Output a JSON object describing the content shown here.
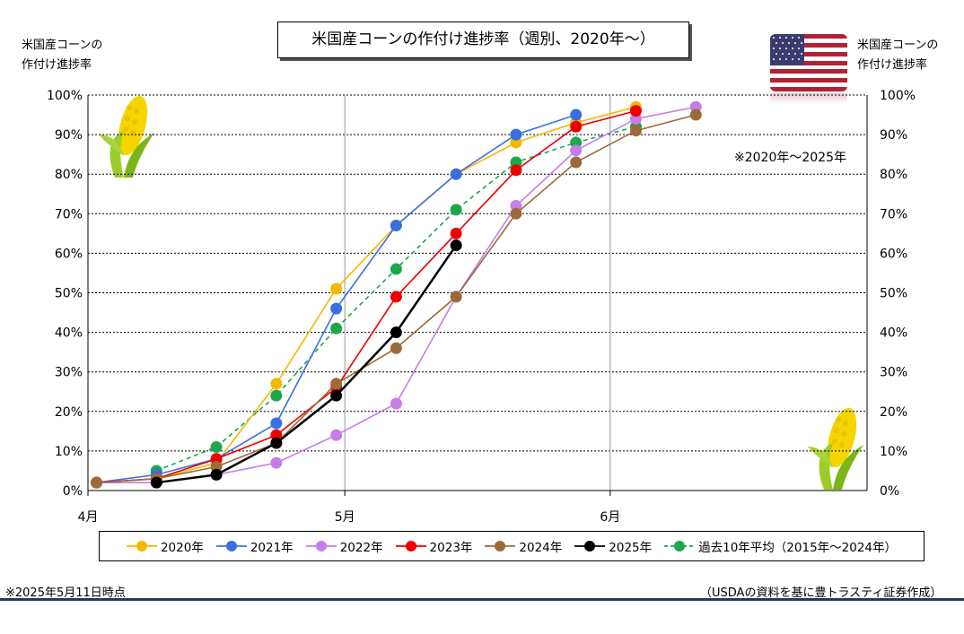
{
  "title": "米国産コーンの作付け進捗率（週別、2020年～）",
  "left_axis_title": [
    "米国産コーンの",
    "作付け進捗率"
  ],
  "right_axis_title": [
    "米国産コーンの",
    "作付け進捗率"
  ],
  "note_range": "※2020年～2025年",
  "footer_left": "※2025年5月11日時点",
  "footer_right": "（USDAの資料を基に豊トラスティ証券作成）",
  "colors": {
    "2020": "#f5b800",
    "2021": "#3a6fe0",
    "2022": "#c77de8",
    "2023": "#ee0000",
    "2024": "#9c6a3a",
    "2025": "#000000",
    "avg": "#1aa84a"
  },
  "icons": [
    "corn-icon",
    "us-flag-icon"
  ],
  "chart_data": {
    "type": "line",
    "xlabel": "",
    "ylabel": "米国産コーンの作付け進捗率",
    "x_unit": "day-of-season (Apr 1 = 0)",
    "xlim": [
      "4月1日",
      "7月1日"
    ],
    "x_ticks": [
      {
        "label": "4月",
        "day": 0
      },
      {
        "label": "5月",
        "day": 30
      },
      {
        "label": "6月",
        "day": 61
      }
    ],
    "ylim": [
      0,
      100
    ],
    "y_ticks": [
      "0%",
      "10%",
      "20%",
      "30%",
      "40%",
      "50%",
      "60%",
      "70%",
      "80%",
      "90%",
      "100%"
    ],
    "grid": true,
    "legend_position": "bottom",
    "series": [
      {
        "name": "2020年",
        "color_key": "2020",
        "dashed": false,
        "points": [
          [
            "4月2日",
            2
          ],
          [
            "4月9日",
            3
          ],
          [
            "4月16日",
            7
          ],
          [
            "4月23日",
            27
          ],
          [
            "4月30日",
            51
          ],
          [
            "5月7日",
            67
          ],
          [
            "5月14日",
            80
          ],
          [
            "5月21日",
            88
          ],
          [
            "5月28日",
            93
          ],
          [
            "6月4日",
            97
          ]
        ]
      },
      {
        "name": "2021年",
        "color_key": "2021",
        "dashed": false,
        "points": [
          [
            "4月2日",
            2
          ],
          [
            "4月9日",
            4
          ],
          [
            "4月16日",
            8
          ],
          [
            "4月23日",
            17
          ],
          [
            "4月30日",
            46
          ],
          [
            "5月7日",
            67
          ],
          [
            "5月14日",
            80
          ],
          [
            "5月21日",
            90
          ],
          [
            "5月28日",
            95
          ]
        ]
      },
      {
        "name": "2022年",
        "color_key": "2022",
        "dashed": false,
        "points": [
          [
            "4月2日",
            2
          ],
          [
            "4月9日",
            2
          ],
          [
            "4月16日",
            4
          ],
          [
            "4月23日",
            7
          ],
          [
            "4月30日",
            14
          ],
          [
            "5月7日",
            22
          ],
          [
            "5月14日",
            49
          ],
          [
            "5月21日",
            72
          ],
          [
            "5月28日",
            86
          ],
          [
            "6月4日",
            94
          ],
          [
            "6月11日",
            97
          ]
        ]
      },
      {
        "name": "2023年",
        "color_key": "2023",
        "dashed": false,
        "points": [
          [
            "4月2日",
            2
          ],
          [
            "4月9日",
            3
          ],
          [
            "4月16日",
            8
          ],
          [
            "4月23日",
            14
          ],
          [
            "4月30日",
            26
          ],
          [
            "5月7日",
            49
          ],
          [
            "5月14日",
            65
          ],
          [
            "5月21日",
            81
          ],
          [
            "5月28日",
            92
          ],
          [
            "6月4日",
            96
          ]
        ]
      },
      {
        "name": "2024年",
        "color_key": "2024",
        "dashed": false,
        "points": [
          [
            "4月2日",
            2
          ],
          [
            "4月9日",
            3
          ],
          [
            "4月16日",
            6
          ],
          [
            "4月23日",
            12
          ],
          [
            "4月30日",
            27
          ],
          [
            "5月7日",
            36
          ],
          [
            "5月14日",
            49
          ],
          [
            "5月21日",
            70
          ],
          [
            "5月28日",
            83
          ],
          [
            "6月4日",
            91
          ],
          [
            "6月11日",
            95
          ]
        ]
      },
      {
        "name": "2025年",
        "color_key": "2025",
        "dashed": false,
        "points": [
          [
            "4月9日",
            2
          ],
          [
            "4月16日",
            4
          ],
          [
            "4月23日",
            12
          ],
          [
            "4月30日",
            24
          ],
          [
            "5月7日",
            40
          ],
          [
            "5月14日",
            62
          ]
        ]
      },
      {
        "name": "過去10年平均（2015年～2024年）",
        "color_key": "avg",
        "dashed": true,
        "points": [
          [
            "4月9日",
            5
          ],
          [
            "4月16日",
            11
          ],
          [
            "4月23日",
            24
          ],
          [
            "4月30日",
            41
          ],
          [
            "5月7日",
            56
          ],
          [
            "5月14日",
            71
          ],
          [
            "5月21日",
            83
          ],
          [
            "5月28日",
            88
          ],
          [
            "6月4日",
            92
          ]
        ]
      }
    ]
  }
}
